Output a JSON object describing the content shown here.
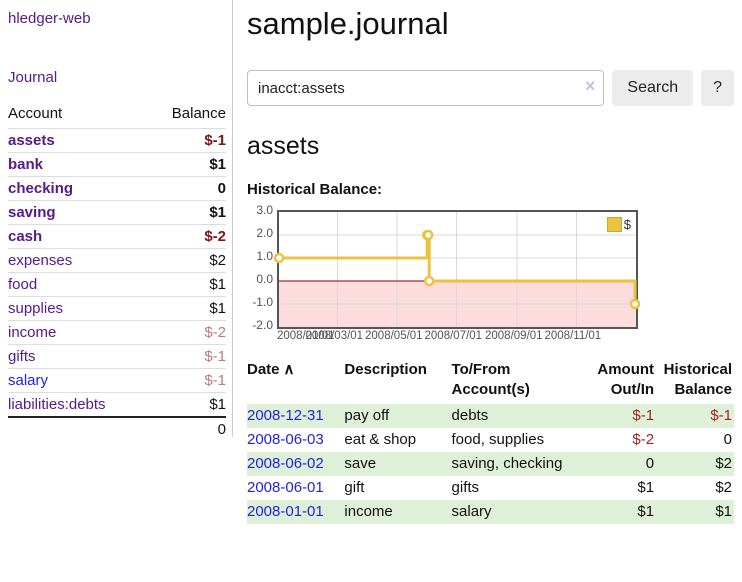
{
  "app": {
    "title": "hledger-web",
    "nav_journal": "Journal"
  },
  "sidebar": {
    "col_account": "Account",
    "col_balance": "Balance",
    "accounts": [
      {
        "label": "assets",
        "depth": 1,
        "selected": true,
        "balance": "$-1",
        "bclass": "neg-strong",
        "link": "purple"
      },
      {
        "label": "bank",
        "depth": 2,
        "selected": true,
        "balance": "$1",
        "bclass": "",
        "link": "purple"
      },
      {
        "label": "checking",
        "depth": 3,
        "selected": true,
        "balance": "0",
        "bclass": "",
        "link": "purple"
      },
      {
        "label": "saving",
        "depth": 3,
        "selected": true,
        "balance": "$1",
        "bclass": "",
        "link": "purple"
      },
      {
        "label": "cash",
        "depth": 2,
        "selected": true,
        "balance": "$-2",
        "bclass": "neg-strong",
        "link": "purple"
      },
      {
        "label": "expenses",
        "depth": 1,
        "selected": false,
        "balance": "$2",
        "bclass": "",
        "link": "purple"
      },
      {
        "label": "food",
        "depth": 2,
        "selected": false,
        "balance": "$1",
        "bclass": "",
        "link": "purple"
      },
      {
        "label": "supplies",
        "depth": 2,
        "selected": false,
        "balance": "$1",
        "bclass": "",
        "link": "purple"
      },
      {
        "label": "income",
        "depth": 1,
        "selected": false,
        "balance": "$-2",
        "bclass": "neg-soft",
        "link": "purple"
      },
      {
        "label": "gifts",
        "depth": 2,
        "selected": false,
        "balance": "$-1",
        "bclass": "neg-soft",
        "link": "purple"
      },
      {
        "label": "salary",
        "depth": 2,
        "selected": false,
        "balance": "$-1",
        "bclass": "neg-soft",
        "link": "blue"
      },
      {
        "label": "liabilities:debts",
        "depth": 1,
        "selected": false,
        "balance": "$1",
        "bclass": "",
        "link": "purple"
      }
    ],
    "total": "0"
  },
  "header": {
    "page_title": "sample.journal"
  },
  "search": {
    "value": "inacct:assets",
    "clear_icon": "×",
    "search_label": "Search",
    "help_label": "?"
  },
  "account_page": {
    "title": "assets",
    "chart_label": "Historical Balance:"
  },
  "chart_data": {
    "type": "line",
    "step": true,
    "title": "Historical Balance",
    "legend": [
      {
        "label": "$",
        "color": "#EDC240"
      }
    ],
    "legend_position": "top-right",
    "series": [
      {
        "name": "$",
        "color": "#EDC240",
        "points": [
          {
            "date": "2008-01-01",
            "value": 1
          },
          {
            "date": "2008-06-01",
            "value": 2
          },
          {
            "date": "2008-06-02",
            "value": 2
          },
          {
            "date": "2008-06-03",
            "value": 0
          },
          {
            "date": "2008-12-31",
            "value": -1
          }
        ]
      }
    ],
    "xrange": [
      "2008-01-01",
      "2009-01-01"
    ],
    "ylim": [
      -2,
      3
    ],
    "yticks": [
      {
        "label": "3.0",
        "value": 3
      },
      {
        "label": "2.0",
        "value": 2
      },
      {
        "label": "1.0",
        "value": 1
      },
      {
        "label": "0.0",
        "value": 0
      },
      {
        "label": "-1.0",
        "value": -1
      },
      {
        "label": "-2.0",
        "value": -2
      }
    ],
    "xticks": [
      {
        "label": "2008/01/01",
        "date": "2008-01-01"
      },
      {
        "label": "2008/03/01",
        "date": "2008-03-01"
      },
      {
        "label": "2008/05/01",
        "date": "2008-05-01"
      },
      {
        "label": "2008/07/01",
        "date": "2008-07-01"
      },
      {
        "label": "2008/09/01",
        "date": "2008-09-01"
      },
      {
        "label": "2008/11/01",
        "date": "2008-11-01"
      },
      {
        "label": "",
        "date": "2009-01-01"
      }
    ],
    "grid": true,
    "negative_region_fill": "#fcdcdc",
    "zero_line_color": "#8b0000"
  },
  "register": {
    "headers": {
      "date": "Date",
      "sort_icon": "∧",
      "description": "Description",
      "accounts": "To/From Account(s)",
      "amount": "Amount Out/In",
      "balance": "Historical Balance"
    },
    "rows": [
      {
        "date": "2008-12-31",
        "description": "pay off",
        "accounts": "debts",
        "amount": "$-1",
        "amount_neg": true,
        "balance": "$-1",
        "balance_neg": true
      },
      {
        "date": "2008-06-03",
        "description": "eat & shop",
        "accounts": "food, supplies",
        "amount": "$-2",
        "amount_neg": true,
        "balance": "0",
        "balance_neg": false
      },
      {
        "date": "2008-06-02",
        "description": "save",
        "accounts": "saving, checking",
        "amount": "0",
        "amount_neg": false,
        "balance": "$2",
        "balance_neg": false
      },
      {
        "date": "2008-06-01",
        "description": "gift",
        "accounts": "gifts",
        "amount": "$1",
        "amount_neg": false,
        "balance": "$2",
        "balance_neg": false
      },
      {
        "date": "2008-01-01",
        "description": "income",
        "accounts": "salary",
        "amount": "$1",
        "amount_neg": false,
        "balance": "$1",
        "balance_neg": false
      }
    ]
  }
}
